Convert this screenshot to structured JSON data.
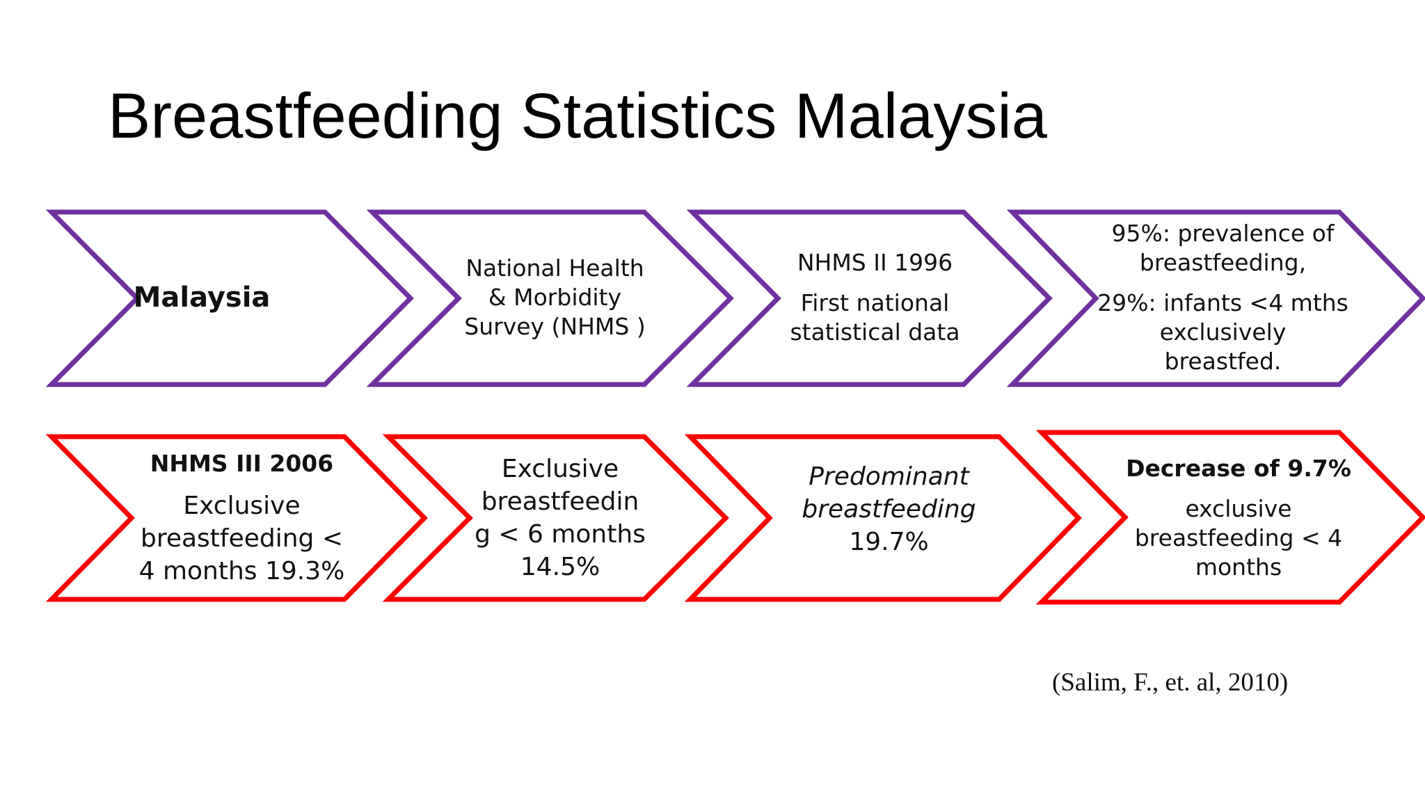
{
  "title": "Breastfeeding Statistics Malaysia",
  "colors": {
    "top_row": "#7030A0",
    "bottom_row": "#FF0000"
  },
  "top_row": [
    {
      "lines": [
        {
          "text": "Malaysia",
          "style": "bold"
        }
      ]
    },
    {
      "lines": [
        {
          "text": "National Health"
        },
        {
          "text": "& Morbidity"
        },
        {
          "text": "Survey (NHMS )"
        }
      ]
    },
    {
      "lines": [
        {
          "text": "NHMS II 1996"
        },
        {
          "text": "First national"
        },
        {
          "text": "statistical data"
        }
      ]
    },
    {
      "lines": [
        {
          "text": "95%: prevalence of"
        },
        {
          "text": "breastfeeding,"
        },
        {
          "text": "29%: infants <4 mths"
        },
        {
          "text": "exclusively"
        },
        {
          "text": "breastfed."
        }
      ]
    }
  ],
  "bottom_row": [
    {
      "lines": [
        {
          "text": "NHMS III 2006",
          "style": "bold"
        },
        {
          "text": "Exclusive"
        },
        {
          "text": "breastfeeding <"
        },
        {
          "text": "4 months 19.3%"
        }
      ]
    },
    {
      "lines": [
        {
          "text": "Exclusive"
        },
        {
          "text": "breastfeedin"
        },
        {
          "text": "g < 6 months"
        },
        {
          "text": "14.5%"
        }
      ]
    },
    {
      "lines": [
        {
          "text": "Predominant",
          "style": "italic"
        },
        {
          "text": "breastfeeding",
          "style": "italic"
        },
        {
          "text": "19.7%"
        }
      ]
    },
    {
      "lines": [
        {
          "text": "Decrease of 9.7%",
          "style": "bold"
        },
        {
          "text": "exclusive"
        },
        {
          "text": "breastfeeding < 4"
        },
        {
          "text": "months"
        }
      ]
    }
  ],
  "citation": "(Salim, F., et. al, 2010)"
}
